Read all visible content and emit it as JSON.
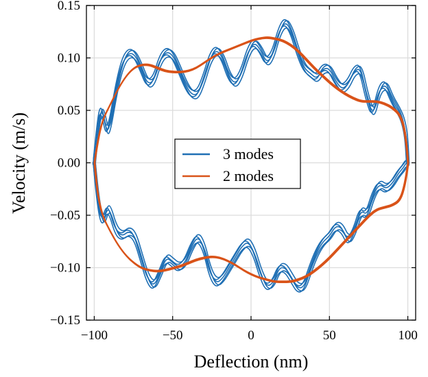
{
  "chart_data": {
    "type": "line",
    "title": "",
    "xlabel": "Deflection (nm)",
    "ylabel": "Velocity (m/s)",
    "xlim": [
      -105,
      105
    ],
    "ylim": [
      -0.15,
      0.15
    ],
    "xticks": [
      -100,
      -50,
      0,
      50,
      100
    ],
    "xtick_labels": [
      "−100",
      "−50",
      "0",
      "50",
      "100"
    ],
    "yticks": [
      -0.15,
      -0.1,
      -0.05,
      0.0,
      0.05,
      0.1,
      0.15
    ],
    "ytick_labels": [
      "−0.15",
      "−0.10",
      "−0.05",
      "0.00",
      "0.05",
      "0.10",
      "0.15"
    ],
    "grid": true,
    "legend_position": "center",
    "series": [
      {
        "name": "3 modes",
        "color": "#1f6fb4",
        "x": [
          -100,
          -98,
          -96,
          -94,
          -92,
          -90,
          -86,
          -82,
          -78,
          -74,
          -70,
          -66,
          -62,
          -58,
          -54,
          -50,
          -46,
          -42,
          -38,
          -34,
          -30,
          -26,
          -22,
          -18,
          -14,
          -10,
          -6,
          -2,
          2,
          6,
          10,
          14,
          18,
          22,
          26,
          30,
          34,
          38,
          42,
          46,
          50,
          54,
          58,
          62,
          66,
          70,
          74,
          78,
          82,
          86,
          90,
          94,
          97,
          99,
          100
        ],
        "upper_y": [
          0.0,
          0.03,
          0.05,
          0.045,
          0.03,
          0.035,
          0.07,
          0.095,
          0.105,
          0.103,
          0.09,
          0.075,
          0.078,
          0.098,
          0.106,
          0.103,
          0.09,
          0.075,
          0.065,
          0.065,
          0.08,
          0.1,
          0.108,
          0.1,
          0.082,
          0.075,
          0.085,
          0.105,
          0.115,
          0.108,
          0.095,
          0.103,
          0.125,
          0.135,
          0.125,
          0.105,
          0.09,
          0.085,
          0.08,
          0.09,
          0.09,
          0.078,
          0.07,
          0.075,
          0.088,
          0.09,
          0.062,
          0.045,
          0.07,
          0.075,
          0.06,
          0.05,
          0.04,
          0.025,
          0.0
        ],
        "lower_y": [
          0.0,
          -0.03,
          -0.05,
          -0.055,
          -0.045,
          -0.045,
          -0.065,
          -0.07,
          -0.065,
          -0.07,
          -0.09,
          -0.11,
          -0.118,
          -0.105,
          -0.09,
          -0.095,
          -0.1,
          -0.095,
          -0.08,
          -0.07,
          -0.08,
          -0.105,
          -0.115,
          -0.11,
          -0.1,
          -0.09,
          -0.08,
          -0.075,
          -0.085,
          -0.105,
          -0.118,
          -0.115,
          -0.1,
          -0.1,
          -0.11,
          -0.12,
          -0.118,
          -0.1,
          -0.085,
          -0.075,
          -0.07,
          -0.06,
          -0.062,
          -0.075,
          -0.065,
          -0.045,
          -0.05,
          -0.03,
          -0.02,
          -0.025,
          -0.02,
          -0.01,
          -0.005,
          0.0,
          0.0
        ]
      },
      {
        "name": "2 modes",
        "color": "#d95319",
        "x": [
          -100,
          -98,
          -95,
          -90,
          -85,
          -80,
          -75,
          -70,
          -65,
          -60,
          -55,
          -50,
          -45,
          -40,
          -35,
          -30,
          -25,
          -20,
          -15,
          -10,
          -5,
          0,
          5,
          10,
          15,
          20,
          25,
          30,
          35,
          40,
          45,
          50,
          55,
          60,
          65,
          70,
          75,
          80,
          85,
          90,
          95,
          98,
          100
        ],
        "upper_y": [
          0.0,
          0.02,
          0.04,
          0.055,
          0.07,
          0.082,
          0.09,
          0.093,
          0.093,
          0.09,
          0.087,
          0.086,
          0.086,
          0.087,
          0.09,
          0.095,
          0.1,
          0.104,
          0.107,
          0.11,
          0.113,
          0.116,
          0.118,
          0.119,
          0.118,
          0.116,
          0.112,
          0.106,
          0.098,
          0.09,
          0.083,
          0.076,
          0.07,
          0.065,
          0.061,
          0.058,
          0.058,
          0.058,
          0.056,
          0.052,
          0.045,
          0.03,
          0.0
        ],
        "lower_y": [
          0.0,
          -0.03,
          -0.05,
          -0.065,
          -0.078,
          -0.088,
          -0.095,
          -0.1,
          -0.102,
          -0.103,
          -0.102,
          -0.1,
          -0.098,
          -0.095,
          -0.092,
          -0.09,
          -0.089,
          -0.09,
          -0.093,
          -0.097,
          -0.102,
          -0.106,
          -0.109,
          -0.111,
          -0.113,
          -0.113,
          -0.113,
          -0.111,
          -0.108,
          -0.103,
          -0.097,
          -0.09,
          -0.082,
          -0.074,
          -0.066,
          -0.058,
          -0.05,
          -0.044,
          -0.042,
          -0.04,
          -0.035,
          -0.02,
          0.0
        ]
      }
    ]
  }
}
